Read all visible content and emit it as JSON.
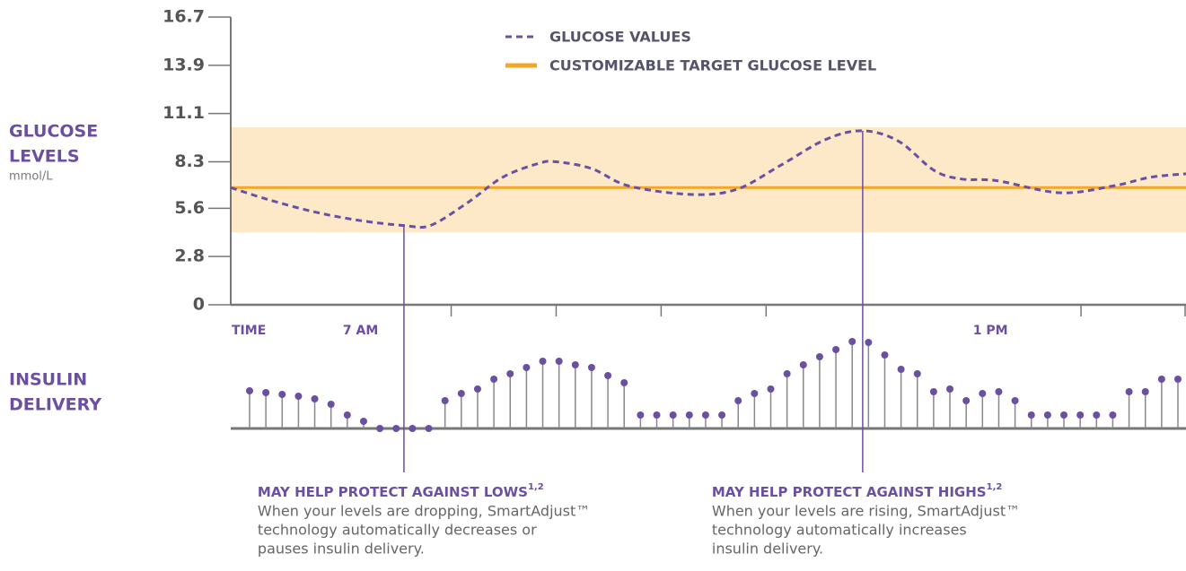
{
  "chart_data": [
    {
      "type": "line",
      "ylabel": [
        "GLUCOSE",
        "LEVELS"
      ],
      "yunit": "mmol/L",
      "xlabel": "TIME",
      "ylim": [
        0,
        16.7
      ],
      "yticks": [
        0,
        2.8,
        5.6,
        8.3,
        11.1,
        13.9,
        16.7
      ],
      "xlim": [
        5.9,
        15
      ],
      "xticks": [
        8,
        9,
        10,
        11,
        14,
        15
      ],
      "xtick_labels": [
        {
          "value": 7,
          "label": "7 AM"
        },
        {
          "value": 13,
          "label": "1 PM"
        }
      ],
      "x": [
        5.9,
        6.26,
        6.69,
        7.12,
        7.55,
        7.8,
        8.15,
        8.49,
        8.83,
        9.0,
        9.34,
        9.69,
        10.29,
        10.72,
        11.14,
        11.57,
        11.92,
        12.26,
        12.6,
        12.86,
        13.2,
        13.8,
        14.31,
        14.66,
        15.0
      ],
      "series": [
        {
          "name": "GLUCOSE VALUES",
          "color": "#6b4fa0",
          "values": [
            6.8,
            6.1,
            5.4,
            4.9,
            4.6,
            4.6,
            5.9,
            7.4,
            8.2,
            8.3,
            7.9,
            6.9,
            6.4,
            6.7,
            8.1,
            9.6,
            10.1,
            9.5,
            7.8,
            7.3,
            7.2,
            6.5,
            6.9,
            7.4,
            7.6
          ]
        }
      ],
      "target": {
        "name": "CUSTOMIZABLE TARGET GLUCOSE LEVEL",
        "value": 6.8,
        "range": [
          4.2,
          10.3
        ],
        "color": "#f5a623",
        "band_color": "#fde8c8"
      },
      "annotations": [
        {
          "x": 7.55,
          "title": "MAY HELP PROTECT AGAINST LOWS",
          "sup": "1,2",
          "lines": [
            "When your levels are dropping, SmartAdjust™",
            "technology automatically decreases or",
            "pauses insulin delivery."
          ]
        },
        {
          "x": 11.92,
          "title": "MAY HELP PROTECT AGAINST HIGHS",
          "sup": "1,2",
          "lines": [
            "When your levels are rising, SmartAdjust™",
            "technology automatically increases",
            "insulin delivery."
          ]
        }
      ]
    },
    {
      "type": "stem",
      "label": [
        "INSULIN",
        "DELIVERY"
      ],
      "color": "#6b4fa0",
      "values": [
        4.2,
        4.0,
        3.8,
        3.6,
        3.3,
        2.7,
        1.5,
        0.8,
        0,
        0,
        0,
        0,
        3.1,
        3.9,
        4.4,
        5.5,
        6.1,
        6.8,
        7.5,
        7.5,
        7.1,
        6.8,
        5.9,
        5.1,
        1.5,
        1.5,
        1.5,
        1.5,
        1.5,
        1.5,
        3.1,
        3.9,
        4.4,
        6.1,
        7.1,
        8.0,
        8.8,
        9.7,
        9.6,
        8.2,
        6.6,
        6.1,
        4.1,
        4.4,
        3.1,
        3.9,
        4.1,
        3.1,
        1.5,
        1.5,
        1.5,
        1.5,
        1.5,
        1.5,
        4.1,
        4.1,
        5.5,
        5.5
      ]
    }
  ]
}
